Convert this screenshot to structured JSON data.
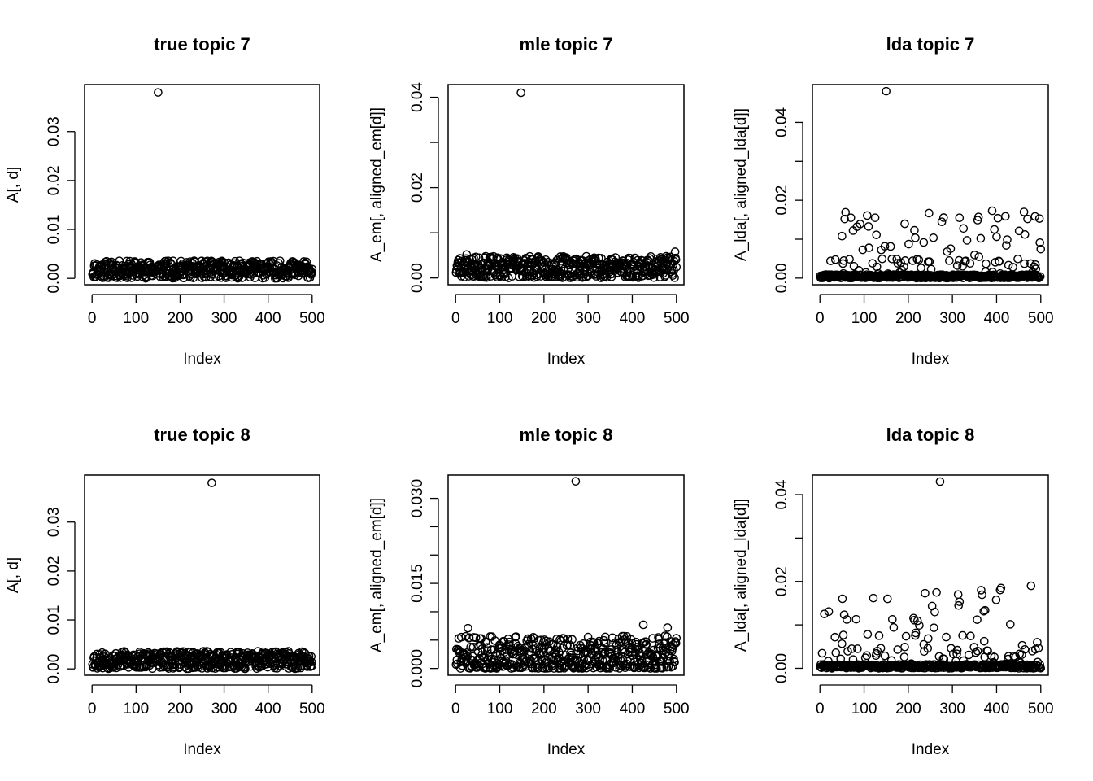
{
  "chart_data": [
    {
      "type": "scatter",
      "title": "true topic 7",
      "xlabel": "Index",
      "ylabel": "A[, d]",
      "xlim": [
        -17,
        517
      ],
      "ylim": [
        -0.0013,
        0.0396
      ],
      "xticks": [
        0,
        100,
        200,
        300,
        400,
        500
      ],
      "xtick_labels": [
        "0",
        "100",
        "200",
        "300",
        "400",
        "500"
      ],
      "yticks": [
        0,
        0.01,
        0.02,
        0.03
      ],
      "ytick_labels": [
        "0.00",
        "0.01",
        "0.02",
        "0.03"
      ],
      "bulk": {
        "n": 500,
        "seed": 11,
        "max": 0.0036,
        "dist": "uniform"
      },
      "outliers": [
        {
          "x": 150,
          "y": 0.038
        }
      ]
    },
    {
      "type": "scatter",
      "title": "mle topic 7",
      "xlabel": "Index",
      "ylabel": "A_em[, aligned_em[d]]",
      "xlim": [
        -17,
        517
      ],
      "ylim": [
        -0.0015,
        0.0428
      ],
      "xticks": [
        0,
        100,
        200,
        300,
        400,
        500
      ],
      "xtick_labels": [
        "0",
        "100",
        "200",
        "300",
        "400",
        "500"
      ],
      "yticks": [
        0,
        0.01,
        0.02,
        0.03,
        0.04
      ],
      "ytick_labels": [
        "0.00",
        "",
        "0.02",
        "",
        "0.04"
      ],
      "bulk": {
        "n": 500,
        "seed": 23,
        "max": 0.0048,
        "dist": "uniform"
      },
      "outliers": [
        {
          "x": 148,
          "y": 0.041
        },
        {
          "x": 497,
          "y": 0.0058
        },
        {
          "x": 25,
          "y": 0.0052
        }
      ]
    },
    {
      "type": "scatter",
      "title": "lda topic 7",
      "xlabel": "Index",
      "ylabel": "A_lda[, aligned_lda[d]]",
      "xlim": [
        -17,
        517
      ],
      "ylim": [
        -0.0017,
        0.0497
      ],
      "xticks": [
        0,
        100,
        200,
        300,
        400,
        500
      ],
      "xtick_labels": [
        "0",
        "100",
        "200",
        "300",
        "400",
        "500"
      ],
      "yticks": [
        0,
        0.01,
        0.02,
        0.03,
        0.04
      ],
      "ytick_labels": [
        "0.00",
        "",
        "0.02",
        "",
        "0.04"
      ],
      "bulk": {
        "n": 500,
        "seed": 37,
        "max": 0.017,
        "dist": "sparse"
      },
      "outliers": [
        {
          "x": 150,
          "y": 0.048
        },
        {
          "x": 70,
          "y": 0.0155
        },
        {
          "x": 125,
          "y": 0.0155
        },
        {
          "x": 247,
          "y": 0.0167
        },
        {
          "x": 390,
          "y": 0.0173
        },
        {
          "x": 462,
          "y": 0.017
        },
        {
          "x": 497,
          "y": 0.0153
        }
      ]
    },
    {
      "type": "scatter",
      "title": "true topic 8",
      "xlabel": "Index",
      "ylabel": "A[, d]",
      "xlim": [
        -17,
        517
      ],
      "ylim": [
        -0.0013,
        0.0396
      ],
      "xticks": [
        0,
        100,
        200,
        300,
        400,
        500
      ],
      "xtick_labels": [
        "0",
        "100",
        "200",
        "300",
        "400",
        "500"
      ],
      "yticks": [
        0,
        0.01,
        0.02,
        0.03
      ],
      "ytick_labels": [
        "0.00",
        "0.01",
        "0.02",
        "0.03"
      ],
      "bulk": {
        "n": 500,
        "seed": 53,
        "max": 0.0036,
        "dist": "uniform"
      },
      "outliers": [
        {
          "x": 272,
          "y": 0.038
        }
      ]
    },
    {
      "type": "scatter",
      "title": "mle topic 8",
      "xlabel": "Index",
      "ylabel": "A_em[, aligned_em[d]]",
      "xlim": [
        -17,
        517
      ],
      "ylim": [
        -0.0012,
        0.0341
      ],
      "xticks": [
        0,
        100,
        200,
        300,
        400,
        500
      ],
      "xtick_labels": [
        "0",
        "100",
        "200",
        "300",
        "400",
        "500"
      ],
      "yticks": [
        0,
        0.005,
        0.01,
        0.015,
        0.02,
        0.025,
        0.03
      ],
      "ytick_labels": [
        "0.000",
        "",
        "",
        "0.015",
        "",
        "",
        "0.030"
      ],
      "bulk": {
        "n": 500,
        "seed": 71,
        "max": 0.0068,
        "dist": "skewed"
      },
      "outliers": [
        {
          "x": 272,
          "y": 0.033
        },
        {
          "x": 425,
          "y": 0.0077
        },
        {
          "x": 28,
          "y": 0.0071
        },
        {
          "x": 480,
          "y": 0.0072
        }
      ]
    },
    {
      "type": "scatter",
      "title": "lda topic 8",
      "xlabel": "Index",
      "ylabel": "A_lda[, aligned_lda[d]]",
      "xlim": [
        -17,
        517
      ],
      "ylim": [
        -0.0016,
        0.0445
      ],
      "xticks": [
        0,
        100,
        200,
        300,
        400,
        500
      ],
      "xtick_labels": [
        "0",
        "100",
        "200",
        "300",
        "400",
        "500"
      ],
      "yticks": [
        0,
        0.01,
        0.02,
        0.03,
        0.04
      ],
      "ytick_labels": [
        "0.00",
        "",
        "0.02",
        "",
        "0.04"
      ],
      "bulk": {
        "n": 500,
        "seed": 89,
        "max": 0.019,
        "dist": "sparse"
      },
      "outliers": [
        {
          "x": 272,
          "y": 0.043
        },
        {
          "x": 410,
          "y": 0.0185
        },
        {
          "x": 365,
          "y": 0.018
        },
        {
          "x": 478,
          "y": 0.019
        },
        {
          "x": 238,
          "y": 0.0173
        },
        {
          "x": 153,
          "y": 0.016
        }
      ]
    }
  ]
}
